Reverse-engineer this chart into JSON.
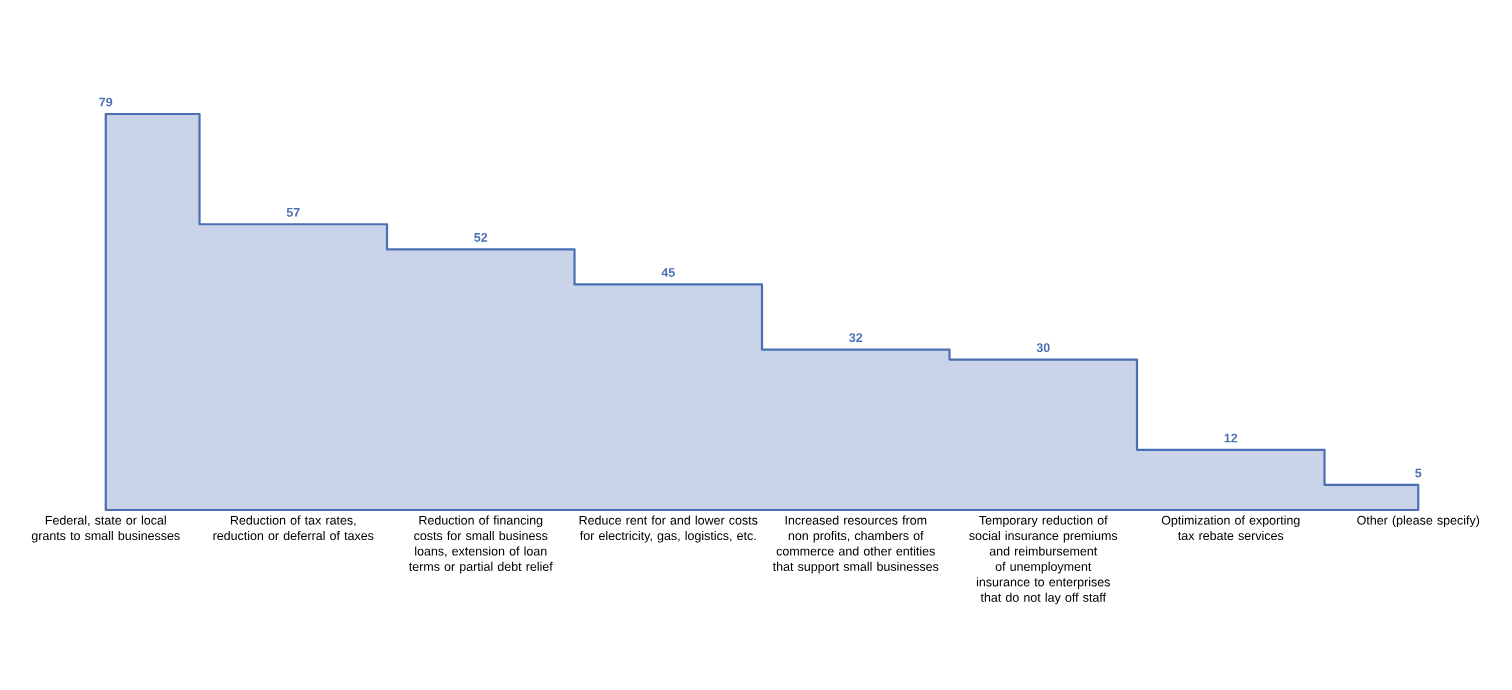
{
  "chart_data": {
    "type": "area",
    "categories": [
      "Federal, state or local grants to small businesses",
      "Reduction of tax rates, reduction or deferral of taxes",
      "Reduction of financing costs for small business loans, extension of loan terms or partial debt relief",
      "Reduce rent for and lower costs for electricity, gas, logistics, etc.",
      "Increased resources from non profits, chambers of commerce and other entities that support small businesses",
      "Temporary reduction of social insurance premiums and reimbursement of unemployment insurance to enterprises that do not lay off staff",
      "Optimization of exporting tax rebate services",
      "Other (please specify)"
    ],
    "values": [
      79,
      57,
      52,
      45,
      32,
      30,
      12,
      5
    ],
    "color": "#4a6fb5",
    "data_labels": true,
    "tick_labels": "x"
  }
}
